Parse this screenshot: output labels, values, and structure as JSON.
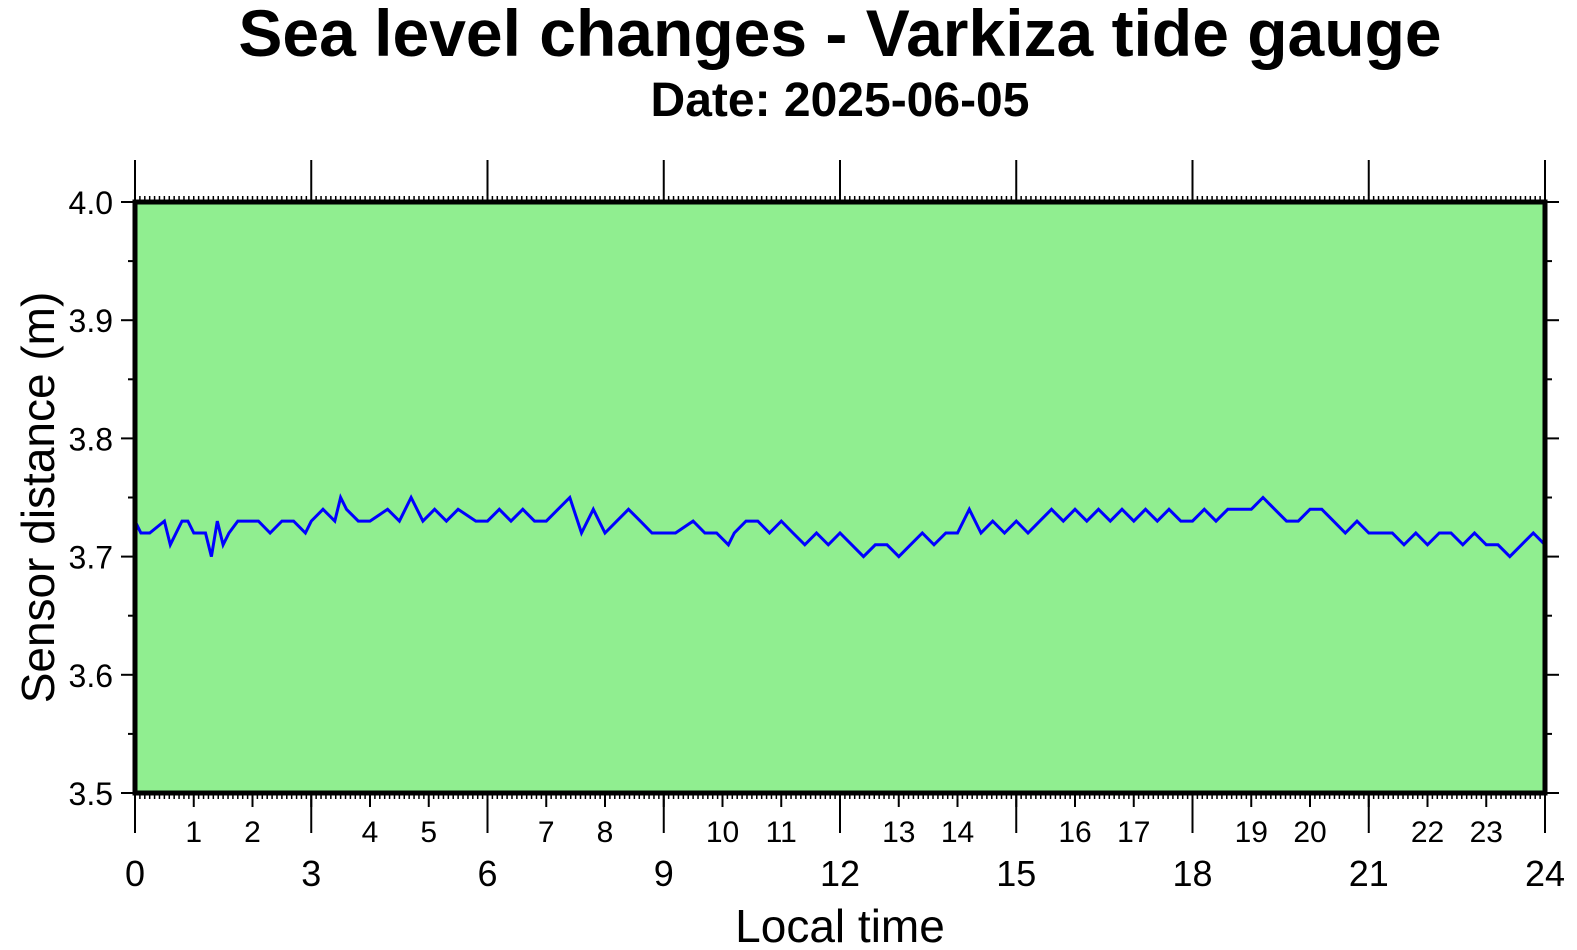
{
  "colors": {
    "background": "#90ee90",
    "series": "#0000ff",
    "axis": "#000000"
  },
  "chart_data": {
    "type": "line",
    "title": "Sea level changes - Varkiza tide gauge",
    "subtitle": "Date: 2025-06-05",
    "xlabel": "Local time",
    "ylabel": "Sensor distance (m)",
    "xlim": [
      0,
      24
    ],
    "ylim": [
      3.5,
      4.0
    ],
    "y_ticks": [
      "3.5",
      "3.6",
      "3.7",
      "3.8",
      "3.9",
      "4.0"
    ],
    "x_major_ticks": [
      "0",
      "3",
      "6",
      "9",
      "12",
      "15",
      "18",
      "21",
      "24"
    ],
    "x_minor_labels": [
      "1",
      "2",
      "4",
      "5",
      "7",
      "8",
      "10",
      "11",
      "13",
      "14",
      "16",
      "17",
      "19",
      "20",
      "22",
      "23"
    ],
    "grid": false,
    "series": [
      {
        "x": [
          0.0,
          0.1,
          0.25,
          0.5,
          0.6,
          0.7,
          0.8,
          0.9,
          1.0,
          1.2,
          1.3,
          1.4,
          1.5,
          1.6,
          1.75,
          1.9,
          2.1,
          2.3,
          2.5,
          2.7,
          2.9,
          3.0,
          3.2,
          3.4,
          3.5,
          3.6,
          3.8,
          4.0,
          4.3,
          4.5,
          4.7,
          4.9,
          5.1,
          5.3,
          5.5,
          5.8,
          6.0,
          6.2,
          6.4,
          6.6,
          6.8,
          7.0,
          7.2,
          7.4,
          7.6,
          7.8,
          8.0,
          8.2,
          8.4,
          8.6,
          8.8,
          9.0,
          9.2,
          9.5,
          9.7,
          9.9,
          10.1,
          10.2,
          10.4,
          10.6,
          10.8,
          11.0,
          11.2,
          11.4,
          11.6,
          11.8,
          12.0,
          12.2,
          12.4,
          12.6,
          12.8,
          13.0,
          13.2,
          13.4,
          13.6,
          13.8,
          14.0,
          14.2,
          14.4,
          14.6,
          14.8,
          15.0,
          15.2,
          15.4,
          15.6,
          15.8,
          16.0,
          16.2,
          16.4,
          16.6,
          16.8,
          17.0,
          17.2,
          17.4,
          17.6,
          17.8,
          18.0,
          18.2,
          18.4,
          18.6,
          18.8,
          19.0,
          19.2,
          19.4,
          19.6,
          19.8,
          20.0,
          20.2,
          20.4,
          20.6,
          20.8,
          21.0,
          21.2,
          21.4,
          21.6,
          21.8,
          22.0,
          22.2,
          22.4,
          22.6,
          22.8,
          23.0,
          23.2,
          23.4,
          23.6,
          23.8,
          24.0
        ],
        "y": [
          3.73,
          3.72,
          3.72,
          3.73,
          3.71,
          3.72,
          3.73,
          3.73,
          3.72,
          3.72,
          3.7,
          3.73,
          3.71,
          3.72,
          3.73,
          3.73,
          3.73,
          3.72,
          3.73,
          3.73,
          3.72,
          3.73,
          3.74,
          3.73,
          3.75,
          3.74,
          3.73,
          3.73,
          3.74,
          3.73,
          3.75,
          3.73,
          3.74,
          3.73,
          3.74,
          3.73,
          3.73,
          3.74,
          3.73,
          3.74,
          3.73,
          3.73,
          3.74,
          3.75,
          3.72,
          3.74,
          3.72,
          3.73,
          3.74,
          3.73,
          3.72,
          3.72,
          3.72,
          3.73,
          3.72,
          3.72,
          3.71,
          3.72,
          3.73,
          3.73,
          3.72,
          3.73,
          3.72,
          3.71,
          3.72,
          3.71,
          3.72,
          3.71,
          3.7,
          3.71,
          3.71,
          3.7,
          3.71,
          3.72,
          3.71,
          3.72,
          3.72,
          3.74,
          3.72,
          3.73,
          3.72,
          3.73,
          3.72,
          3.73,
          3.74,
          3.73,
          3.74,
          3.73,
          3.74,
          3.73,
          3.74,
          3.73,
          3.74,
          3.73,
          3.74,
          3.73,
          3.73,
          3.74,
          3.73,
          3.74,
          3.74,
          3.74,
          3.75,
          3.74,
          3.73,
          3.73,
          3.74,
          3.74,
          3.73,
          3.72,
          3.73,
          3.72,
          3.72,
          3.72,
          3.71,
          3.72,
          3.71,
          3.72,
          3.72,
          3.71,
          3.72,
          3.71,
          3.71,
          3.7,
          3.71,
          3.72,
          3.71
        ]
      }
    ]
  }
}
